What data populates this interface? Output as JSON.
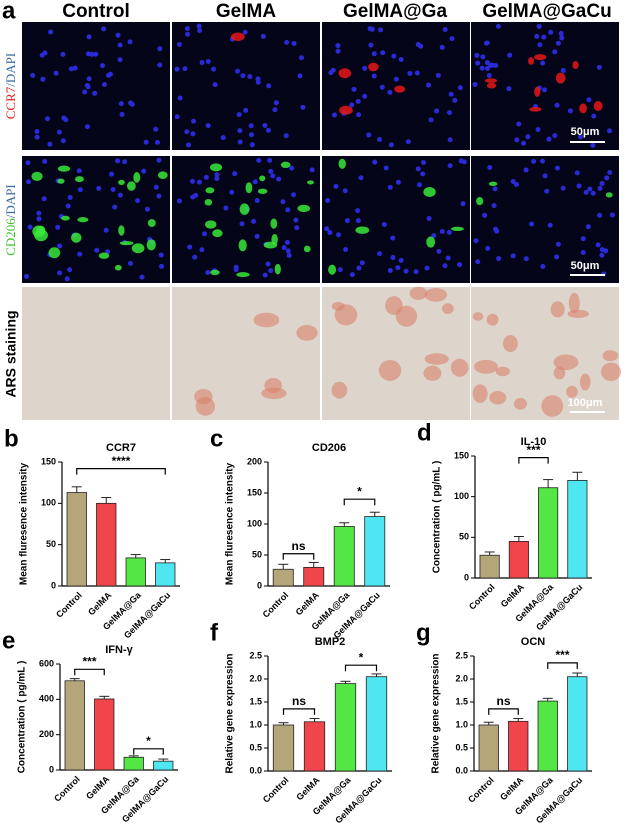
{
  "panel_a": {
    "label": "a",
    "columns": [
      "Control",
      "GelMA",
      "GelMA@Ga",
      "GelMA@GaCu"
    ],
    "rows": [
      [
        "CCR7",
        "/DAPI"
      ],
      [
        "CD206",
        "/DAPI"
      ],
      [
        "ARS staining"
      ]
    ],
    "scale_bars": [
      "50μm",
      "50μm",
      "100μm"
    ]
  },
  "chart_data": [
    {
      "type": "bar",
      "panel": "b",
      "title": "CCR7",
      "y_label": "Mean fluresence intensity",
      "categories": [
        "Control",
        "GelMA",
        "GelMA@Ga",
        "GelMA@GaCu"
      ],
      "values": [
        113,
        100,
        34,
        28
      ],
      "errors": [
        7,
        7,
        4,
        4
      ],
      "colors": [
        "#b5a67a",
        "#f0454b",
        "#53e645",
        "#4ee6f0"
      ],
      "ylim": [
        0,
        150
      ],
      "yticks": [
        0,
        50,
        100,
        150
      ],
      "annotations": [
        "****"
      ]
    },
    {
      "type": "bar",
      "panel": "c",
      "title": "CD206",
      "y_label": "Mean fluresence intensity",
      "categories": [
        "Control",
        "GelMA",
        "GelMA@Ga",
        "GelMA@GaCu"
      ],
      "values": [
        27,
        30,
        96,
        112
      ],
      "errors": [
        8,
        8,
        6,
        7
      ],
      "colors": [
        "#b5a67a",
        "#f0454b",
        "#53e645",
        "#4ee6f0"
      ],
      "ylim": [
        0,
        200
      ],
      "yticks": [
        0,
        50,
        100,
        150,
        200
      ],
      "annotations": [
        "ns",
        "*"
      ]
    },
    {
      "type": "bar",
      "panel": "d",
      "title": "IL-10",
      "y_label": "Concentration ( pg/mL )",
      "categories": [
        "Control",
        "GelMA",
        "GelMA@Ga",
        "GelMA@GaCu"
      ],
      "values": [
        28,
        45,
        111,
        120
      ],
      "errors": [
        4,
        6,
        10,
        10
      ],
      "colors": [
        "#b5a67a",
        "#f0454b",
        "#53e645",
        "#4ee6f0"
      ],
      "ylim": [
        0,
        150
      ],
      "yticks": [
        0,
        50,
        100,
        150
      ],
      "annotations": [
        "***"
      ]
    },
    {
      "type": "bar",
      "panel": "e",
      "title": "IFN-γ",
      "y_label": "Concentration ( pg/mL )",
      "categories": [
        "Control",
        "GelMA",
        "GelMA@Ga",
        "GelMA@GaCu"
      ],
      "values": [
        505,
        402,
        72,
        50
      ],
      "errors": [
        12,
        15,
        8,
        12
      ],
      "colors": [
        "#b5a67a",
        "#f0454b",
        "#53e645",
        "#4ee6f0"
      ],
      "ylim": [
        0,
        600
      ],
      "yticks": [
        0,
        200,
        400,
        600
      ],
      "annotations": [
        "***",
        "*"
      ]
    },
    {
      "type": "bar",
      "panel": "f",
      "title": "BMP2",
      "y_label": "Relative gene expression",
      "categories": [
        "Control",
        "GelMA",
        "GelMA@Ga",
        "GelMA@GaCu"
      ],
      "values": [
        1.0,
        1.07,
        1.9,
        2.05
      ],
      "errors": [
        0.05,
        0.07,
        0.05,
        0.06
      ],
      "colors": [
        "#b5a67a",
        "#f0454b",
        "#53e645",
        "#4ee6f0"
      ],
      "ylim": [
        0,
        2.5
      ],
      "yticks": [
        {
          "value": 0,
          "label": "0.0"
        },
        0.5,
        {
          "value": 1,
          "label": "1.0"
        },
        1.5,
        {
          "value": 2,
          "label": "2.0"
        },
        2.5
      ],
      "annotations": [
        "ns",
        "*"
      ]
    },
    {
      "type": "bar",
      "panel": "g",
      "title": "OCN",
      "y_label": "Relative gene expression",
      "categories": [
        "Control",
        "GelMA",
        "GelMA@Ga",
        "GelMA@GaCu"
      ],
      "values": [
        1.0,
        1.08,
        1.52,
        2.05
      ],
      "errors": [
        0.06,
        0.06,
        0.06,
        0.08
      ],
      "colors": [
        "#b5a67a",
        "#f0454b",
        "#53e645",
        "#4ee6f0"
      ],
      "ylim": [
        0,
        2.5
      ],
      "yticks": [
        {
          "value": 0,
          "label": "0.0"
        },
        0.5,
        {
          "value": 1,
          "label": "1.0"
        },
        1.5,
        {
          "value": 2,
          "label": "2.0"
        },
        2.5
      ],
      "annotations": [
        "ns",
        "***"
      ]
    }
  ]
}
